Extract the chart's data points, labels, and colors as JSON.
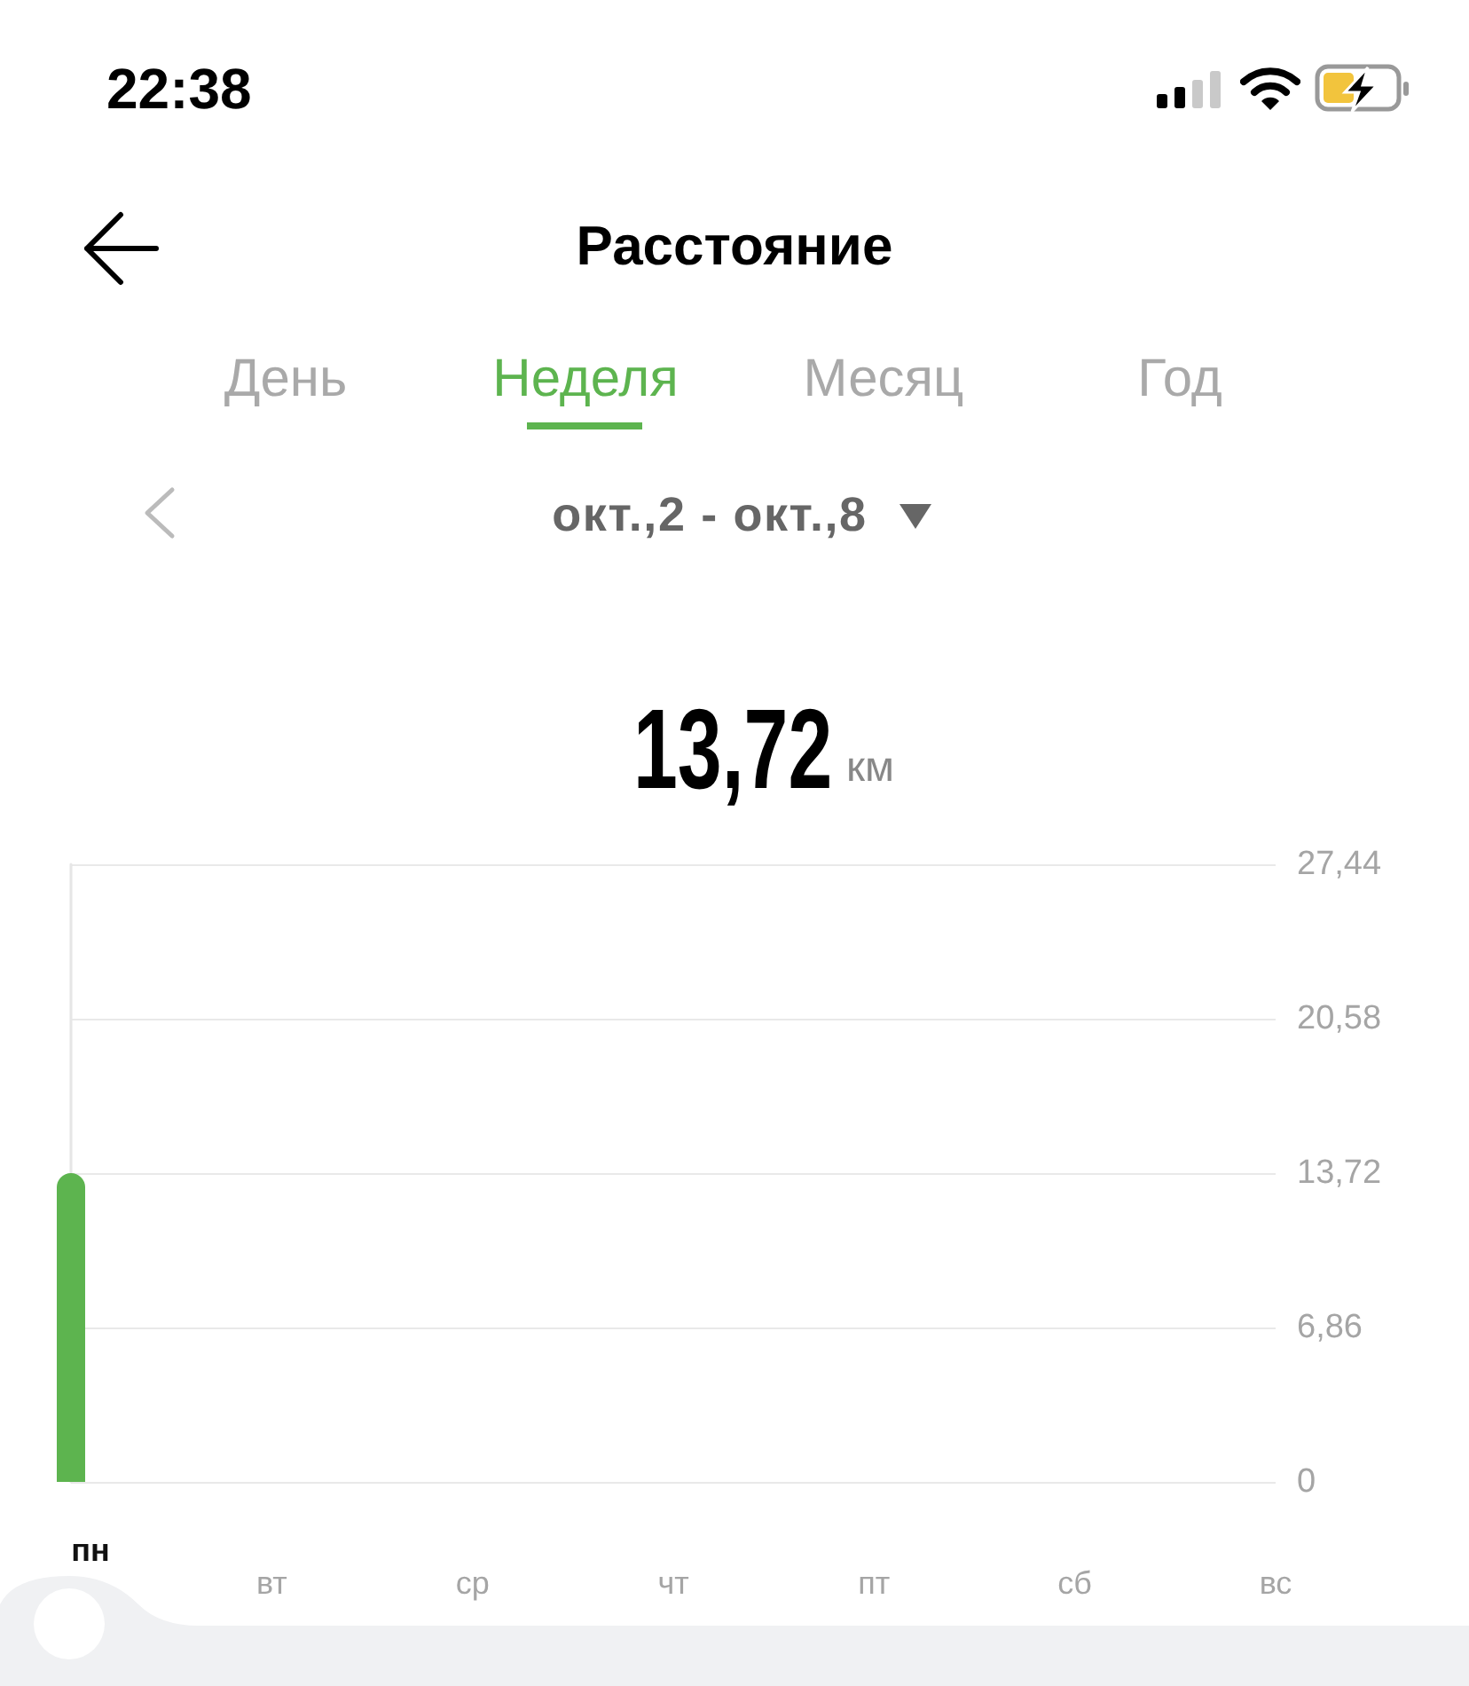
{
  "chart_data": {
    "type": "bar",
    "title": "Расстояние",
    "subtitle": "окт.,2 - окт.,8",
    "annotations": [
      "22:38",
      "День",
      "Неделя",
      "Месяц",
      "Год",
      "13,72",
      "км"
    ],
    "categories": [
      "пн",
      "вт",
      "ср",
      "чт",
      "пт",
      "сб",
      "вс"
    ],
    "values": [
      13.72,
      null,
      null,
      null,
      null,
      null,
      null
    ],
    "color": "#5db44f",
    "ylim": [
      0,
      27.44
    ],
    "yticks": [
      0,
      {
        "value": 6.86,
        "label": "6,86"
      },
      {
        "value": 13.72,
        "label": "13,72"
      },
      {
        "value": 20.58,
        "label": "20,58"
      },
      {
        "value": 27.44,
        "label": "27,44"
      }
    ],
    "grid": "y"
  }
}
